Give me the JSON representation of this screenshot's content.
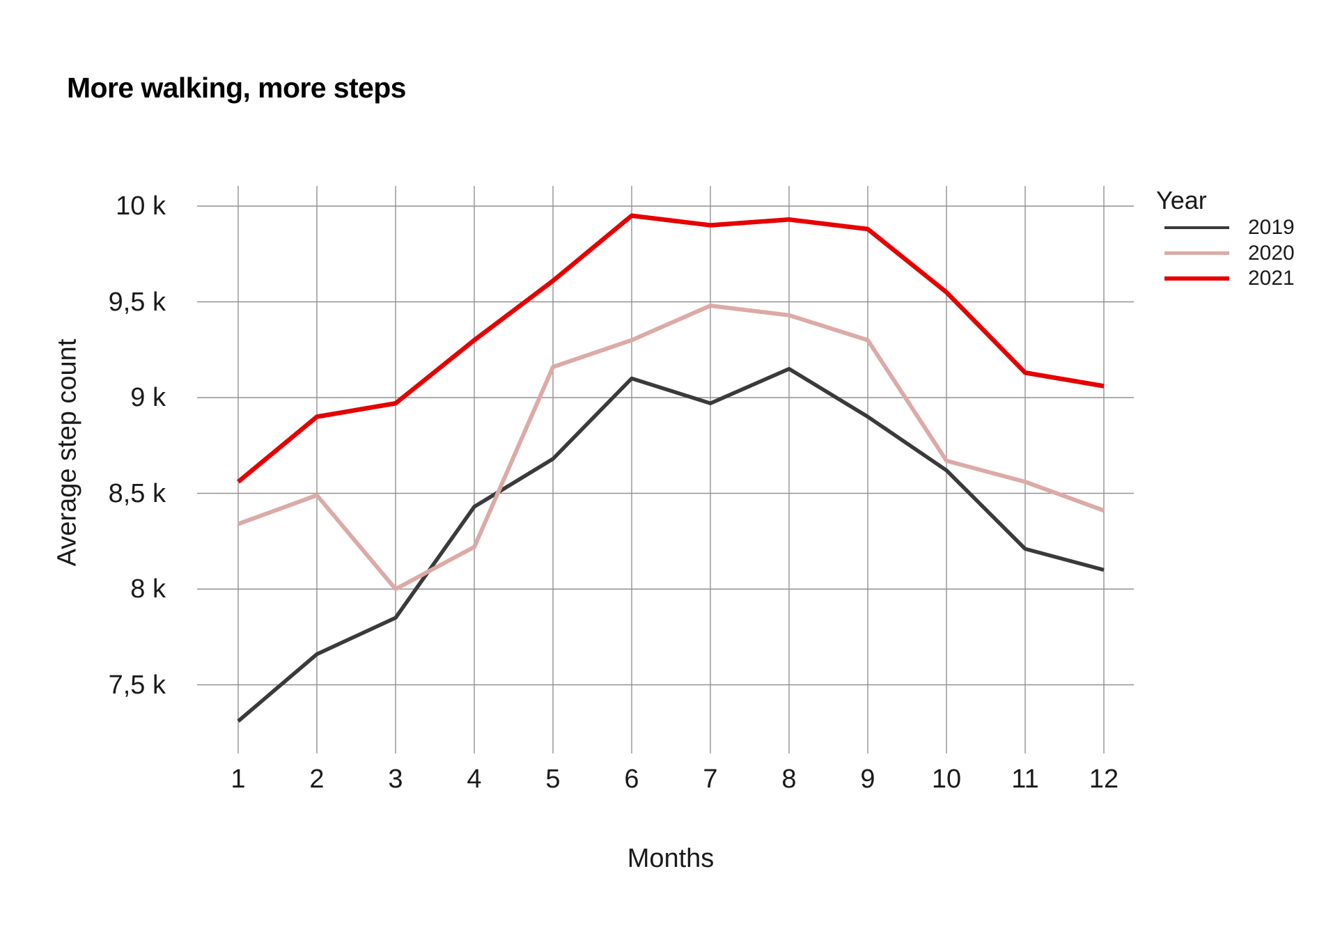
{
  "title": "More walking, more steps",
  "colors": {
    "background": "#ffffff",
    "grid": "#919191",
    "text": "#1a1a1a",
    "series_2019": "#3a3a3a",
    "series_2020": "#dcaaa6",
    "series_2021": "#e60000"
  },
  "chart_data": {
    "type": "line",
    "title": "More walking, more steps",
    "xlabel": "Months",
    "ylabel": "Average step count",
    "values_unit": "thousand steps (k)",
    "grid": true,
    "legend_position": "right",
    "x_axis": {
      "label": "Months",
      "ticks": [
        "1",
        "2",
        "3",
        "4",
        "5",
        "6",
        "7",
        "8",
        "9",
        "10",
        "11",
        "12"
      ]
    },
    "y_axis": {
      "label": "Average step count",
      "ticks": [
        "10 k",
        "9,5 k",
        "9 k",
        "8,5 k",
        "8 k",
        "7,5 k"
      ],
      "tick_values": [
        10,
        9.5,
        9,
        8.5,
        8,
        7.5
      ],
      "range": [
        7.5,
        10
      ]
    },
    "legend": {
      "title": "Year",
      "entries": [
        "2019",
        "2020",
        "2021"
      ]
    },
    "categories": [
      1,
      2,
      3,
      4,
      5,
      6,
      7,
      8,
      9,
      10,
      11,
      12
    ],
    "series": [
      {
        "name": "2019",
        "color": "#3a3a3a",
        "values": [
          7.31,
          7.66,
          7.85,
          8.43,
          8.68,
          9.1,
          8.97,
          9.15,
          8.9,
          8.62,
          8.21,
          8.1
        ]
      },
      {
        "name": "2020",
        "color": "#dcaaa6",
        "values": [
          8.34,
          8.49,
          8.0,
          8.22,
          9.16,
          9.3,
          9.48,
          9.43,
          9.3,
          8.67,
          8.56,
          8.41
        ]
      },
      {
        "name": "2021",
        "color": "#e60000",
        "values": [
          8.56,
          8.9,
          8.97,
          9.3,
          9.61,
          9.95,
          9.9,
          9.93,
          9.88,
          9.55,
          9.13,
          9.06
        ]
      }
    ]
  }
}
